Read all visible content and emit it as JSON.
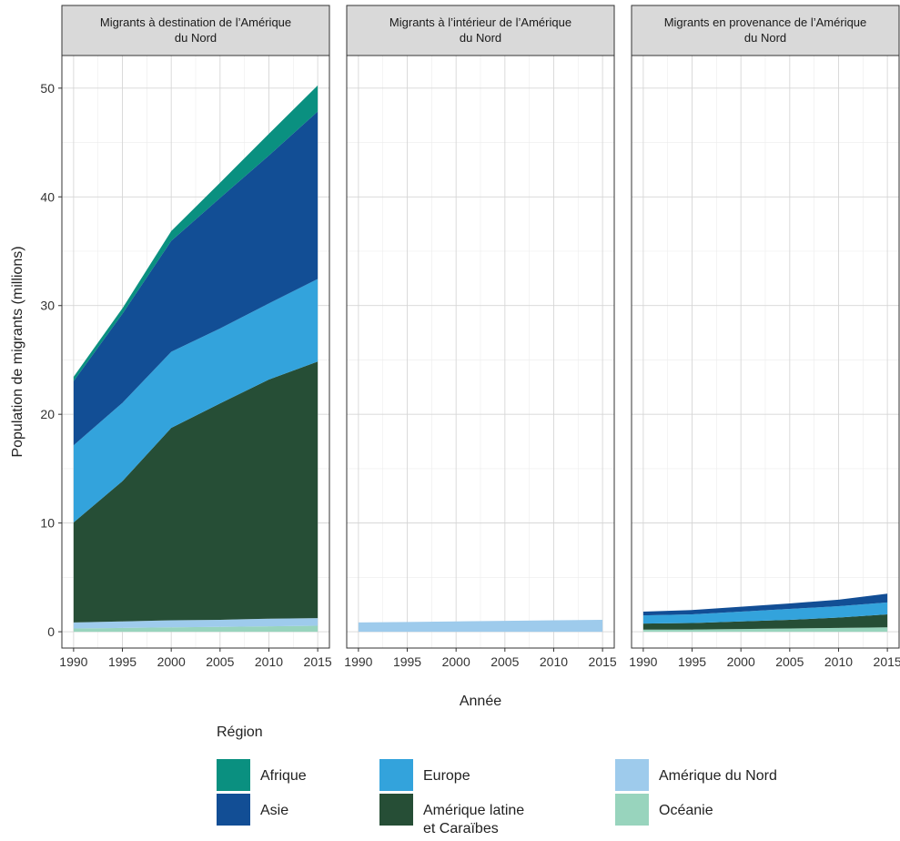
{
  "chart_data": {
    "type": "area",
    "stacked": true,
    "x": [
      1990,
      1995,
      2000,
      2005,
      2010,
      2015
    ],
    "x_ticks": [
      1990,
      1995,
      2000,
      2005,
      2010,
      2015
    ],
    "ylim": [
      0,
      52
    ],
    "y_ticks": [
      0,
      10,
      20,
      30,
      40,
      50
    ],
    "xlabel": "Année",
    "ylabel": "Population de migrants (millions)",
    "grid": true,
    "legend": {
      "title": "Région",
      "position": "bottom",
      "entries": [
        {
          "key": "afrique",
          "label": "Afrique",
          "color": "#0a9080"
        },
        {
          "key": "asie",
          "label": "Asie",
          "color": "#124e95"
        },
        {
          "key": "europe",
          "label": "Europe",
          "color": "#33a3dc"
        },
        {
          "key": "amlat",
          "label": "Amérique latine\net Caraïbes",
          "color": "#264e36"
        },
        {
          "key": "amnord",
          "label": "Amérique du Nord",
          "color": "#9ecbec"
        },
        {
          "key": "oceanie",
          "label": "Océanie",
          "color": "#98d4bd"
        }
      ]
    },
    "stack_order": [
      "oceanie",
      "amnord",
      "amlat",
      "europe",
      "asie",
      "afrique"
    ],
    "panels": [
      {
        "title": "Migrants à destination de l’Amérique\ndu Nord",
        "series": [
          {
            "key": "oceanie",
            "values": [
              0.3,
              0.35,
              0.4,
              0.45,
              0.5,
              0.55
            ]
          },
          {
            "key": "amnord",
            "values": [
              0.55,
              0.6,
              0.65,
              0.65,
              0.7,
              0.7
            ]
          },
          {
            "key": "amlat",
            "values": [
              9.2,
              12.9,
              17.7,
              19.9,
              22.0,
              23.6
            ]
          },
          {
            "key": "europe",
            "values": [
              7.1,
              7.2,
              7.0,
              6.9,
              7.0,
              7.6
            ]
          },
          {
            "key": "asie",
            "values": [
              5.9,
              8.2,
              10.2,
              12.0,
              13.6,
              15.4
            ]
          },
          {
            "key": "afrique",
            "values": [
              0.4,
              0.5,
              0.9,
              1.4,
              2.0,
              2.4
            ]
          }
        ]
      },
      {
        "title": "Migrants à l’intérieur de l’Amérique\ndu Nord",
        "series": [
          {
            "key": "oceanie",
            "values": [
              0,
              0,
              0,
              0,
              0,
              0
            ]
          },
          {
            "key": "amnord",
            "values": [
              0.85,
              0.9,
              0.95,
              1.0,
              1.05,
              1.1
            ]
          },
          {
            "key": "amlat",
            "values": [
              0,
              0,
              0,
              0,
              0,
              0
            ]
          },
          {
            "key": "europe",
            "values": [
              0,
              0,
              0,
              0,
              0,
              0
            ]
          },
          {
            "key": "asie",
            "values": [
              0,
              0,
              0,
              0,
              0,
              0
            ]
          },
          {
            "key": "afrique",
            "values": [
              0,
              0,
              0,
              0,
              0,
              0
            ]
          }
        ]
      },
      {
        "title": "Migrants en provenance de l’Amérique\ndu Nord",
        "series": [
          {
            "key": "oceanie",
            "values": [
              0.2,
              0.2,
              0.25,
              0.3,
              0.35,
              0.4
            ]
          },
          {
            "key": "amnord",
            "values": [
              0,
              0,
              0,
              0,
              0,
              0
            ]
          },
          {
            "key": "amlat",
            "values": [
              0.55,
              0.6,
              0.7,
              0.8,
              0.95,
              1.2
            ]
          },
          {
            "key": "europe",
            "values": [
              0.75,
              0.8,
              0.9,
              1.0,
              1.05,
              1.1
            ]
          },
          {
            "key": "asie",
            "values": [
              0.35,
              0.4,
              0.45,
              0.5,
              0.6,
              0.8
            ]
          },
          {
            "key": "afrique",
            "values": [
              0,
              0,
              0,
              0,
              0,
              0
            ]
          }
        ]
      }
    ]
  }
}
